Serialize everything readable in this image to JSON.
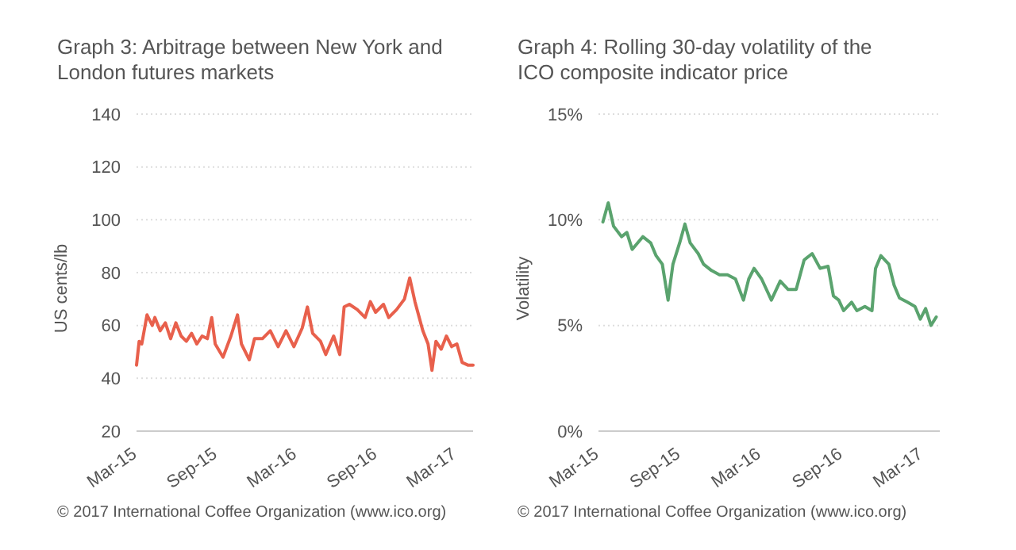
{
  "chart_data": [
    {
      "type": "line",
      "title": "Graph 3:   Arbitrage between New York and London futures markets",
      "ylabel": "US cents/lb",
      "annotations": [
        "© 2017 International Coffee Organization (www.ico.org)"
      ],
      "x": [
        "2015-02-21",
        "2015-02-27",
        "2015-03-05",
        "2015-03-17",
        "2015-03-29",
        "2015-04-04",
        "2015-04-16",
        "2015-04-28",
        "2015-05-10",
        "2015-05-22",
        "2015-06-03",
        "2015-06-15",
        "2015-06-27",
        "2015-07-09",
        "2015-07-21",
        "2015-08-02",
        "2015-08-12",
        "2015-08-20",
        "2015-09-07",
        "2015-09-25",
        "2015-10-10",
        "2015-10-19",
        "2015-11-06",
        "2015-11-18",
        "2015-12-06",
        "2015-12-24",
        "2016-01-11",
        "2016-01-29",
        "2016-02-16",
        "2016-03-06",
        "2016-03-18",
        "2016-03-30",
        "2016-04-17",
        "2016-04-29",
        "2016-05-17",
        "2016-05-31",
        "2016-06-10",
        "2016-06-22",
        "2016-07-10",
        "2016-07-28",
        "2016-08-09",
        "2016-08-21",
        "2016-09-08",
        "2016-09-20",
        "2016-10-08",
        "2016-10-26",
        "2016-11-07",
        "2016-11-19",
        "2016-12-07",
        "2016-12-19",
        "2016-12-28",
        "2017-01-06",
        "2017-01-18",
        "2017-01-30",
        "2017-02-11",
        "2017-02-23",
        "2017-03-07",
        "2017-03-20",
        "2017-04-01"
      ],
      "series": [
        {
          "color": "#e8604c",
          "values": [
            45,
            54,
            53,
            64,
            60,
            63,
            58,
            61,
            55,
            61,
            56,
            54,
            57,
            53,
            56,
            55,
            63,
            53,
            48,
            56,
            64,
            53,
            47,
            55,
            55,
            58,
            52,
            58,
            52,
            59,
            67,
            57,
            54,
            49,
            56,
            49,
            67,
            68,
            66,
            63,
            69,
            65,
            68,
            63,
            66,
            70,
            78,
            69,
            58,
            53,
            43,
            54,
            51,
            56,
            52,
            53,
            46,
            45,
            45
          ]
        }
      ],
      "xlim": [
        "2015-02-21",
        "2017-04-01"
      ],
      "xticks": [
        {
          "value": "2015-03-01",
          "label": "Mar-15"
        },
        {
          "value": "2015-09-01",
          "label": "Sep-15"
        },
        {
          "value": "2016-03-01",
          "label": "Mar-16"
        },
        {
          "value": "2016-09-01",
          "label": "Sep-16"
        },
        {
          "value": "2017-03-01",
          "label": "Mar-17"
        }
      ],
      "ylim": [
        20,
        140
      ],
      "yticks": [
        20,
        40,
        60,
        80,
        100,
        120,
        140
      ],
      "grid": "y",
      "marker": "none",
      "line_style": "solid"
    },
    {
      "type": "line",
      "title": "Graph 4:   Rolling 30-day volatility of the ICO composite indicator price",
      "ylabel": "Volatility",
      "annotations": [
        "© 2017 International Coffee Organization (www.ico.org)"
      ],
      "x": [
        "2015-03-03",
        "2015-03-15",
        "2015-03-27",
        "2015-04-14",
        "2015-04-26",
        "2015-05-08",
        "2015-05-20",
        "2015-06-01",
        "2015-06-19",
        "2015-07-01",
        "2015-07-15",
        "2015-07-28",
        "2015-08-08",
        "2015-08-23",
        "2015-09-04",
        "2015-09-16",
        "2015-10-04",
        "2015-10-16",
        "2015-11-03",
        "2015-11-21",
        "2015-12-09",
        "2015-12-27",
        "2016-01-14",
        "2016-01-26",
        "2016-02-07",
        "2016-02-24",
        "2016-03-17",
        "2016-04-06",
        "2016-04-24",
        "2016-05-12",
        "2016-05-30",
        "2016-06-17",
        "2016-07-05",
        "2016-07-23",
        "2016-08-04",
        "2016-08-16",
        "2016-08-27",
        "2016-09-14",
        "2016-09-26",
        "2016-10-14",
        "2016-10-30",
        "2016-11-07",
        "2016-11-19",
        "2016-12-07",
        "2016-12-19",
        "2016-12-31",
        "2017-01-18",
        "2017-02-04",
        "2017-02-16",
        "2017-02-28",
        "2017-03-12",
        "2017-03-24"
      ],
      "series": [
        {
          "color": "#5aa36e",
          "values": [
            9.9,
            10.8,
            9.7,
            9.2,
            9.4,
            8.6,
            8.9,
            9.2,
            8.9,
            8.3,
            7.9,
            6.2,
            7.9,
            8.9,
            9.8,
            8.9,
            8.4,
            7.9,
            7.6,
            7.4,
            7.4,
            7.2,
            6.2,
            7.2,
            7.7,
            7.2,
            6.2,
            7.1,
            6.7,
            6.7,
            8.1,
            8.4,
            7.7,
            7.8,
            6.4,
            6.2,
            5.7,
            6.1,
            5.7,
            5.9,
            5.7,
            7.7,
            8.3,
            7.9,
            6.9,
            6.3,
            6.1,
            5.9,
            5.3,
            5.8,
            5.0,
            5.4
          ]
        }
      ],
      "xlim": [
        "2015-02-21",
        "2017-04-01"
      ],
      "xticks": [
        {
          "value": "2015-03-01",
          "label": "Mar-15"
        },
        {
          "value": "2015-09-01",
          "label": "Sep-15"
        },
        {
          "value": "2016-03-01",
          "label": "Mar-16"
        },
        {
          "value": "2016-09-01",
          "label": "Sep-16"
        },
        {
          "value": "2017-03-01",
          "label": "Mar-17"
        }
      ],
      "ylim": [
        0,
        15
      ],
      "yticks": [
        {
          "value": 0,
          "label": "0%"
        },
        {
          "value": 5,
          "label": "5%"
        },
        {
          "value": 10,
          "label": "10%"
        },
        {
          "value": 15,
          "label": "15%"
        }
      ],
      "grid": "y",
      "marker": "none",
      "line_style": "solid"
    }
  ]
}
